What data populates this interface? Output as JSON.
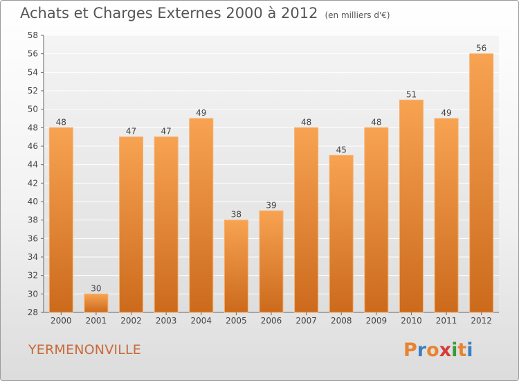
{
  "chart_data": {
    "type": "bar",
    "title": "Achats et Charges Externes 2000 à 2012",
    "unit_label": "(en milliers d'€)",
    "categories": [
      "2000",
      "2001",
      "2002",
      "2003",
      "2004",
      "2005",
      "2006",
      "2007",
      "2008",
      "2009",
      "2010",
      "2011",
      "2012"
    ],
    "values": [
      48,
      30,
      47,
      47,
      49,
      38,
      39,
      48,
      45,
      48,
      51,
      49,
      56
    ],
    "ylim": [
      28,
      58
    ],
    "yticks": [
      28,
      30,
      32,
      34,
      36,
      38,
      40,
      42,
      44,
      46,
      48,
      50,
      52,
      54,
      56,
      58
    ],
    "grid": true,
    "bar_color": "#e8832f"
  },
  "footer": {
    "commune": "YERMENONVILLE",
    "logo": [
      "P",
      "r",
      "o",
      "x",
      "i",
      "t",
      "i"
    ],
    "logo_colors": [
      "#e8832f",
      "#3a7fc1",
      "#e8832f",
      "#d63a3a",
      "#3a9a3a",
      "#e8832f",
      "#3a7fc1"
    ]
  }
}
